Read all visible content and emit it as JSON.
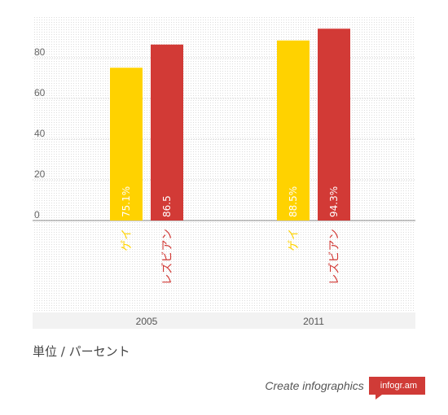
{
  "chart_data": {
    "type": "bar",
    "categories": [
      "2005",
      "2011"
    ],
    "series": [
      {
        "name": "ゲイ",
        "values": [
          75.1,
          88.5
        ],
        "labels": [
          "75.1%",
          "88.5%"
        ],
        "color": "#ffd200"
      },
      {
        "name": "レズビアン",
        "values": [
          86.5,
          94.3
        ],
        "labels": [
          "86.5",
          "94.3%"
        ],
        "color": "#d23a36"
      }
    ],
    "y_ticks": [
      "0",
      "20",
      "40",
      "60",
      "80"
    ],
    "ylim": [
      0,
      100
    ],
    "grid": true,
    "title": "",
    "xlabel": "",
    "ylabel": ""
  },
  "unit_note": "単位 / パーセント",
  "footer": {
    "create_text": "Create infographics",
    "brand": "infogr.am"
  },
  "colors": {
    "background": "#ffffff",
    "plot_background": "#ececec",
    "axis_band": "#f2f2f2"
  }
}
